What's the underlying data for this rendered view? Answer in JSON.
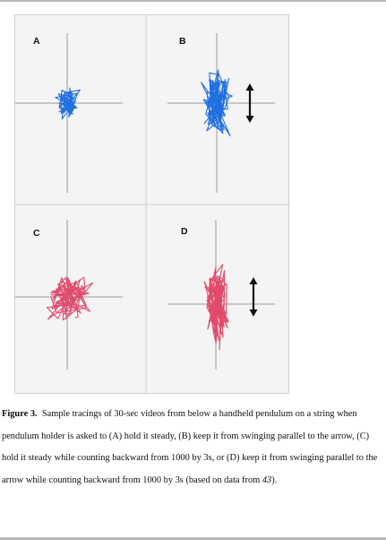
{
  "figure": {
    "panels": [
      {
        "label": "A",
        "color": "#1f6fe0",
        "arrow": false
      },
      {
        "label": "B",
        "color": "#1f6fe0",
        "arrow": true
      },
      {
        "label": "C",
        "color": "#e04b6b",
        "arrow": false
      },
      {
        "label": "D",
        "color": "#e04b6b",
        "arrow": true
      }
    ],
    "axis_color": "#9a9a9a",
    "divider_color": "#cfcfcf",
    "arrow_color": "#111111"
  },
  "caption": {
    "label": "Figure 3.",
    "text_before_ref": "Sample tracings of 30-sec videos from below a handheld pendulum on a string when pendulum holder is asked to (A) hold it steady, (B) keep it from swinging parallel to the arrow, (C) hold it steady while counting backward from 1000 by 3s, or (D) keep it from swinging parallel to the arrow while counting backward from 1000 by 3s (based on data from ",
    "ref": "43",
    "text_after_ref": ")."
  }
}
